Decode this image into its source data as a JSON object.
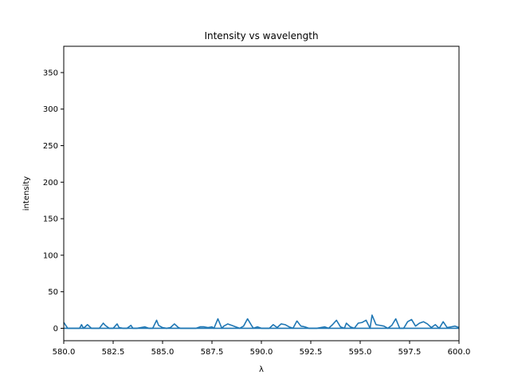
{
  "chart_data": {
    "type": "line",
    "title": "Intensity vs wavelength",
    "xlabel": "λ",
    "ylabel": "intensity",
    "xlim": [
      580.0,
      600.0
    ],
    "ylim": [
      -17,
      386
    ],
    "xticks": [
      580.0,
      582.5,
      585.0,
      587.5,
      590.0,
      592.5,
      595.0,
      597.5,
      600.0
    ],
    "xtick_labels": [
      "580.0",
      "582.5",
      "585.0",
      "587.5",
      "590.0",
      "592.5",
      "595.0",
      "597.5",
      "600.0"
    ],
    "yticks": [
      0,
      50,
      100,
      150,
      200,
      250,
      300,
      350
    ],
    "ytick_labels": [
      "0",
      "50",
      "100",
      "150",
      "200",
      "250",
      "300",
      "350"
    ],
    "grid": false,
    "legend": "none",
    "series": [
      {
        "color": "#1f77b4",
        "x": [
          580.0,
          580.2,
          580.4,
          580.6,
          580.8,
          580.9,
          581.0,
          581.2,
          581.4,
          581.6,
          581.8,
          582.0,
          582.1,
          582.3,
          582.5,
          582.7,
          582.8,
          583.0,
          583.2,
          583.4,
          583.5,
          583.7,
          583.9,
          584.1,
          584.3,
          584.5,
          584.7,
          584.8,
          585.0,
          585.2,
          585.4,
          585.6,
          585.8,
          585.9,
          586.1,
          586.3,
          586.5,
          586.7,
          586.9,
          587.1,
          587.3,
          587.5,
          587.6,
          587.8,
          588.0,
          588.1,
          588.3,
          588.5,
          588.7,
          588.9,
          589.1,
          589.3,
          589.5,
          589.6,
          589.8,
          590.0,
          590.2,
          590.4,
          590.6,
          590.8,
          591.0,
          591.2,
          591.4,
          591.6,
          591.8,
          592.0,
          592.2,
          592.4,
          592.6,
          592.8,
          593.0,
          593.2,
          593.4,
          593.6,
          593.8,
          594.0,
          594.2,
          594.3,
          594.5,
          594.7,
          594.9,
          595.1,
          595.3,
          595.5,
          595.6,
          595.8,
          596.0,
          596.2,
          596.4,
          596.6,
          596.8,
          597.0,
          597.2,
          597.4,
          597.6,
          597.8,
          598.0,
          598.2,
          598.4,
          598.6,
          598.8,
          599.0,
          599.2,
          599.4,
          599.6,
          599.8,
          600.0
        ],
        "y": [
          8,
          0,
          0,
          0,
          0,
          5,
          0,
          5,
          0,
          0,
          0,
          7,
          4,
          0,
          0,
          6,
          1,
          0,
          0,
          4,
          0,
          0,
          1,
          2,
          0,
          0,
          11,
          4,
          1,
          0,
          1,
          6,
          1,
          0,
          0,
          0,
          0,
          0,
          2,
          2,
          1,
          2,
          0,
          13,
          0,
          3,
          6,
          4,
          2,
          0,
          3,
          13,
          4,
          0,
          2,
          0,
          0,
          0,
          5,
          1,
          6,
          5,
          2,
          0,
          10,
          3,
          2,
          0,
          0,
          0,
          1,
          2,
          0,
          5,
          11,
          2,
          0,
          7,
          2,
          0,
          7,
          8,
          11,
          0,
          18,
          5,
          4,
          3,
          0,
          4,
          13,
          0,
          0,
          9,
          12,
          3,
          7,
          9,
          6,
          1,
          5,
          0,
          9,
          1,
          2,
          3,
          1
        ]
      },
      {
        "color": "#1f77b4",
        "x": [
          580.0,
          600.0
        ],
        "y": [
          0,
          0
        ]
      }
    ]
  }
}
